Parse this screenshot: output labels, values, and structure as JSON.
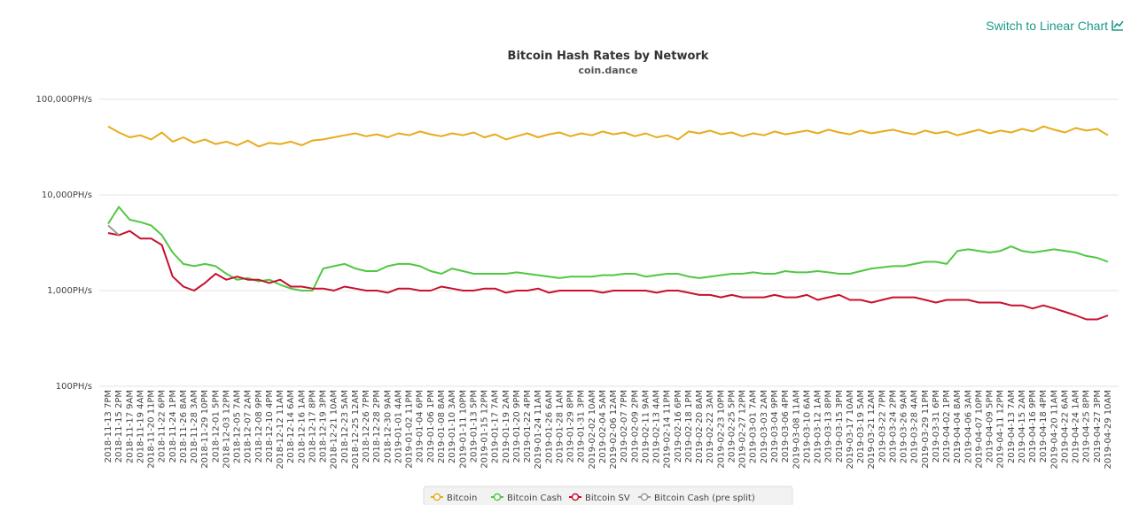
{
  "link": "Switch to Linear Chart",
  "chart_data": {
    "type": "line",
    "title": "Bitcoin Hash Rates by Network",
    "subtitle": "coin.dance",
    "log_scale": true,
    "grid": true,
    "ylim": [
      100,
      100000
    ],
    "yticks": [
      {
        "value": 100,
        "label": "100PH/s"
      },
      {
        "value": 1000,
        "label": "1,000PH/s"
      },
      {
        "value": 10000,
        "label": "10,000PH/s"
      },
      {
        "value": 100000,
        "label": "100,000PH/s"
      }
    ],
    "categories": [
      "2018-11-13 7PM",
      "2018-11-15 2PM",
      "2018-11-17 9AM",
      "2018-11-19 4AM",
      "2018-11-20 11PM",
      "2018-11-22 6PM",
      "2018-11-24 1PM",
      "2018-11-26 8AM",
      "2018-11-28 3AM",
      "2018-11-29 10PM",
      "2018-12-01 5PM",
      "2018-12-03 12PM",
      "2018-12-05 7AM",
      "2018-12-07 2AM",
      "2018-12-08 9PM",
      "2018-12-10 4PM",
      "2018-12-12 11AM",
      "2018-12-14 6AM",
      "2018-12-16 1AM",
      "2018-12-17 8PM",
      "2018-12-19 3PM",
      "2018-12-21 10AM",
      "2018-12-23 5AM",
      "2018-12-25 12AM",
      "2018-12-26 7PM",
      "2018-12-28 2PM",
      "2018-12-30 9AM",
      "2019-01-01 4AM",
      "2019-01-02 11PM",
      "2019-01-04 6PM",
      "2019-01-06 1PM",
      "2019-01-08 8AM",
      "2019-01-10 3AM",
      "2019-01-11 10PM",
      "2019-01-13 5PM",
      "2019-01-15 12PM",
      "2019-01-17 7AM",
      "2019-01-19 2AM",
      "2019-01-20 9PM",
      "2019-01-22 4PM",
      "2019-01-24 11AM",
      "2019-01-26 6AM",
      "2019-01-28 1AM",
      "2019-01-29 8PM",
      "2019-01-31 3PM",
      "2019-02-02 10AM",
      "2019-02-04 5AM",
      "2019-02-06 12AM",
      "2019-02-07 7PM",
      "2019-02-09 2PM",
      "2019-02-11 9AM",
      "2019-02-13 4AM",
      "2019-02-14 11PM",
      "2019-02-16 6PM",
      "2019-02-18 1PM",
      "2019-02-20 8AM",
      "2019-02-22 3AM",
      "2019-02-23 10PM",
      "2019-02-25 5PM",
      "2019-02-27 12PM",
      "2019-03-01 7AM",
      "2019-03-03 2AM",
      "2019-03-04 9PM",
      "2019-03-06 4PM",
      "2019-03-08 11AM",
      "2019-03-10 6AM",
      "2019-03-12 1AM",
      "2019-03-13 8PM",
      "2019-03-15 3PM",
      "2019-03-17 10AM",
      "2019-03-19 5AM",
      "2019-03-21 12AM",
      "2019-03-22 7PM",
      "2019-03-24 2PM",
      "2019-03-26 9AM",
      "2019-03-28 4AM",
      "2019-03-29 11PM",
      "2019-03-31 6PM",
      "2019-04-02 1PM",
      "2019-04-04 8AM",
      "2019-04-06 3AM",
      "2019-04-07 10PM",
      "2019-04-09 5PM",
      "2019-04-11 12PM",
      "2019-04-13 7AM",
      "2019-04-15 2AM",
      "2019-04-16 9PM",
      "2019-04-18 4PM",
      "2019-04-20 11AM",
      "2019-04-22 6AM",
      "2019-04-24 1AM",
      "2019-04-25 8PM",
      "2019-04-27 3PM",
      "2019-04-29 10AM"
    ],
    "series": [
      {
        "name": "Bitcoin",
        "color": "#e8ab1c",
        "values": [
          52000,
          45000,
          40000,
          42000,
          38000,
          45000,
          36000,
          40000,
          35000,
          38000,
          34000,
          36000,
          33000,
          37000,
          32000,
          35000,
          34000,
          36000,
          33000,
          37000,
          38000,
          40000,
          42000,
          44000,
          41000,
          43000,
          40000,
          44000,
          42000,
          46000,
          43000,
          41000,
          44000,
          42000,
          45000,
          40000,
          43000,
          38000,
          41000,
          44000,
          40000,
          43000,
          45000,
          41000,
          44000,
          42000,
          46000,
          43000,
          45000,
          41000,
          44000,
          40000,
          42000,
          38000,
          46000,
          44000,
          47000,
          43000,
          45000,
          41000,
          44000,
          42000,
          46000,
          43000,
          45000,
          47000,
          44000,
          48000,
          45000,
          43000,
          47000,
          44000,
          46000,
          48000,
          45000,
          43000,
          47000,
          44000,
          46000,
          42000,
          45000,
          48000,
          44000,
          47000,
          45000,
          49000,
          46000,
          52000,
          48000,
          45000,
          50000,
          47000,
          49000,
          42000
        ]
      },
      {
        "name": "Bitcoin Cash",
        "color": "#4fc842",
        "values": [
          5000,
          7500,
          5500,
          5200,
          4800,
          3800,
          2500,
          1900,
          1800,
          1900,
          1800,
          1500,
          1300,
          1350,
          1250,
          1300,
          1150,
          1050,
          1000,
          1000,
          1700,
          1800,
          1900,
          1700,
          1600,
          1600,
          1800,
          1900,
          1900,
          1800,
          1600,
          1500,
          1700,
          1600,
          1500,
          1500,
          1500,
          1500,
          1550,
          1500,
          1450,
          1400,
          1350,
          1400,
          1400,
          1400,
          1450,
          1450,
          1500,
          1500,
          1400,
          1450,
          1500,
          1500,
          1400,
          1350,
          1400,
          1450,
          1500,
          1500,
          1550,
          1500,
          1500,
          1600,
          1550,
          1550,
          1600,
          1550,
          1500,
          1500,
          1600,
          1700,
          1750,
          1800,
          1800,
          1900,
          2000,
          2000,
          1900,
          2600,
          2700,
          2600,
          2500,
          2600,
          2900,
          2600,
          2500,
          2600,
          2700,
          2600,
          2500,
          2300,
          2200,
          2000
        ]
      },
      {
        "name": "Bitcoin SV",
        "color": "#c8102e",
        "values": [
          4000,
          3800,
          4200,
          3500,
          3500,
          3000,
          1400,
          1100,
          1000,
          1200,
          1500,
          1300,
          1400,
          1300,
          1300,
          1200,
          1300,
          1100,
          1100,
          1050,
          1050,
          1000,
          1100,
          1050,
          1000,
          1000,
          950,
          1050,
          1050,
          1000,
          1000,
          1100,
          1050,
          1000,
          1000,
          1050,
          1050,
          950,
          1000,
          1000,
          1050,
          950,
          1000,
          1000,
          1000,
          1000,
          950,
          1000,
          1000,
          1000,
          1000,
          950,
          1000,
          1000,
          950,
          900,
          900,
          850,
          900,
          850,
          850,
          850,
          900,
          850,
          850,
          900,
          800,
          850,
          900,
          800,
          800,
          750,
          800,
          850,
          850,
          850,
          800,
          750,
          800,
          800,
          800,
          750,
          750,
          750,
          700,
          700,
          650,
          700,
          650,
          600,
          550,
          500,
          500,
          550
        ]
      },
      {
        "name": "Bitcoin Cash (pre split)",
        "color": "#9a9a9a",
        "values": [
          4800,
          3800,
          null,
          null,
          null,
          null,
          null,
          null,
          null,
          null,
          null,
          null,
          null,
          null,
          null,
          null,
          null,
          null,
          null,
          null,
          null,
          null,
          null,
          null,
          null,
          null,
          null,
          null,
          null,
          null,
          null,
          null,
          null,
          null,
          null,
          null,
          null,
          null,
          null,
          null,
          null,
          null,
          null,
          null,
          null,
          null,
          null,
          null,
          null,
          null,
          null,
          null,
          null,
          null,
          null,
          null,
          null,
          null,
          null,
          null,
          null,
          null,
          null,
          null,
          null,
          null,
          null,
          null,
          null,
          null,
          null,
          null,
          null,
          null,
          null,
          null,
          null,
          null,
          null,
          null,
          null,
          null,
          null,
          null,
          null,
          null,
          null,
          null,
          null,
          null,
          null,
          null,
          null,
          null
        ]
      }
    ]
  }
}
